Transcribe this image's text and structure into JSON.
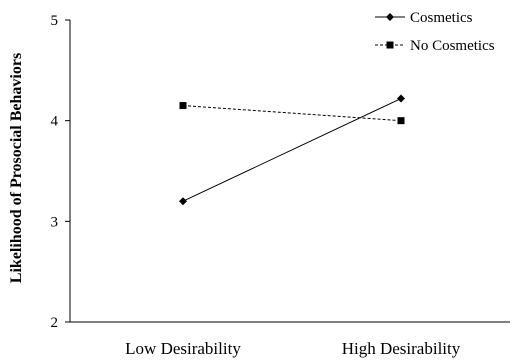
{
  "chart_data": {
    "type": "line",
    "categories": [
      "Low Desirability",
      "High Desirability"
    ],
    "series": [
      {
        "name": "Cosmetics",
        "values": [
          3.2,
          4.22
        ],
        "marker": "diamond",
        "dash": "solid",
        "color": "#000000"
      },
      {
        "name": "No Cosmetics",
        "values": [
          4.15,
          4.0
        ],
        "marker": "square",
        "dash": "dashed",
        "color": "#000000"
      }
    ],
    "title": "",
    "xlabel": "",
    "ylabel": "Likelihood of Prosocial Behaviors",
    "ylim": [
      2,
      5
    ],
    "yticks": [
      "2",
      "3",
      "4",
      "5"
    ],
    "grid": false,
    "legend_position": "top-right"
  }
}
